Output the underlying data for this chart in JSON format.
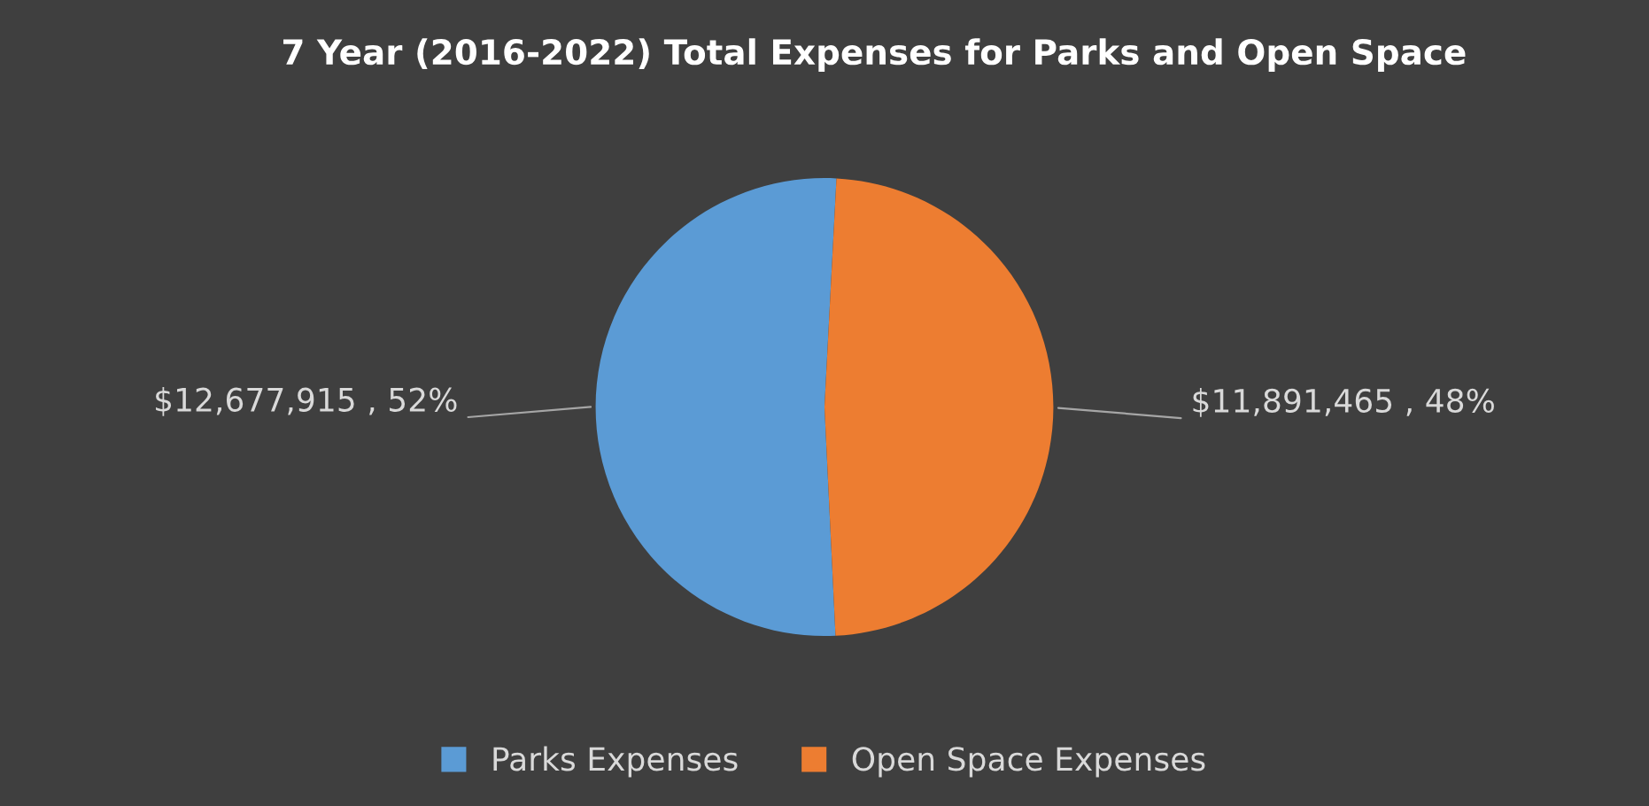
{
  "chart_data": {
    "type": "pie",
    "title": "7 Year (2016-2022) Total Expenses for Parks and Open Space",
    "categories": [
      "Parks Expenses",
      "Open Space Expenses"
    ],
    "values": [
      12677915,
      11891465
    ],
    "colors": [
      "#5b9bd5",
      "#ed7d31"
    ],
    "value_labels": [
      "$12,677,915 , 52%",
      "$11,891,465 , 48%"
    ],
    "legend": "bottom"
  }
}
